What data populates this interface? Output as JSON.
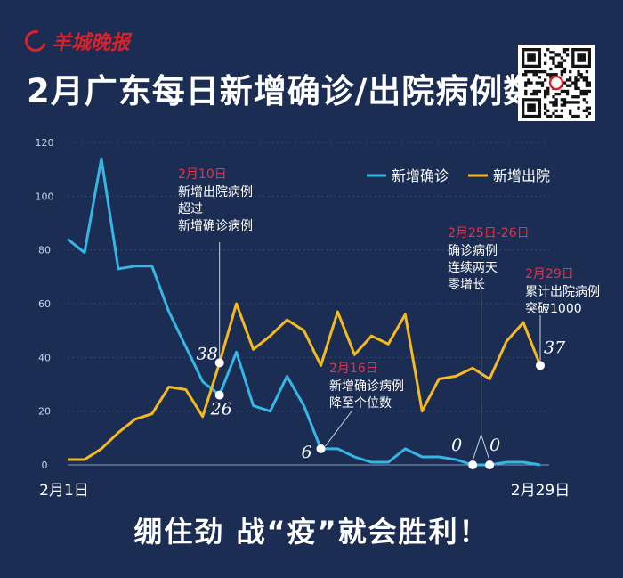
{
  "header": {
    "logo_text": "羊城晚报",
    "title": "2月广东每日新增确诊/出院病例数"
  },
  "footer": {
    "slogan": "绷住劲 战“疫”就会胜利！"
  },
  "colors": {
    "background": "#1b2d52",
    "confirmed": "#35b6e6",
    "discharged": "#f5b921",
    "annotation_date": "#e4344a",
    "text": "#ffffff",
    "grid": "#34476b"
  },
  "chart_data": {
    "type": "line",
    "title": "2月广东每日新增确诊/出院病例数",
    "xlabel": "",
    "ylabel": "",
    "ylim": [
      0,
      120
    ],
    "yticks": [
      0,
      20,
      40,
      60,
      80,
      100,
      120
    ],
    "x_start_label": "2月1日",
    "x_end_label": "2月29日",
    "legend_position": "top-right",
    "grid": true,
    "series": [
      {
        "name": "新增确诊",
        "color": "#35b6e6",
        "values": [
          84,
          79,
          114,
          73,
          74,
          74,
          57,
          44,
          31,
          26,
          42,
          22,
          20,
          33,
          22,
          6,
          6,
          3,
          1,
          1,
          6,
          3,
          3,
          2,
          0,
          0,
          1,
          1,
          0
        ]
      },
      {
        "name": "新增出院",
        "color": "#f5b921",
        "values": [
          2,
          2,
          6,
          12,
          17,
          19,
          29,
          28,
          18,
          38,
          60,
          43,
          48,
          54,
          50,
          37,
          57,
          41,
          48,
          45,
          56,
          20,
          32,
          33,
          36,
          32,
          46,
          53,
          37
        ]
      }
    ],
    "point_labels": [
      {
        "series": 1,
        "index": 9,
        "label": "38"
      },
      {
        "series": 0,
        "index": 9,
        "label": "26"
      },
      {
        "series": 0,
        "index": 15,
        "label": "6"
      },
      {
        "series": 0,
        "index": 24,
        "label": "0"
      },
      {
        "series": 0,
        "index": 25,
        "label": "0"
      },
      {
        "series": 1,
        "index": 28,
        "label": "37"
      }
    ],
    "annotations": [
      {
        "series": 1,
        "index": 9,
        "date": "2月10日",
        "lines": [
          "新增出院病例",
          "超过",
          "新增确诊病例"
        ]
      },
      {
        "series": 0,
        "index": 15,
        "date": "2月16日",
        "lines": [
          "新增确诊病例",
          "降至个位数"
        ]
      },
      {
        "series": 0,
        "index": 24.5,
        "date": "2月25日-26日",
        "lines": [
          "确诊病例",
          "连续两天",
          "零增长"
        ]
      },
      {
        "series": 1,
        "index": 28,
        "date": "2月29日",
        "lines": [
          "累计出院病例",
          "突破1000"
        ]
      }
    ]
  }
}
